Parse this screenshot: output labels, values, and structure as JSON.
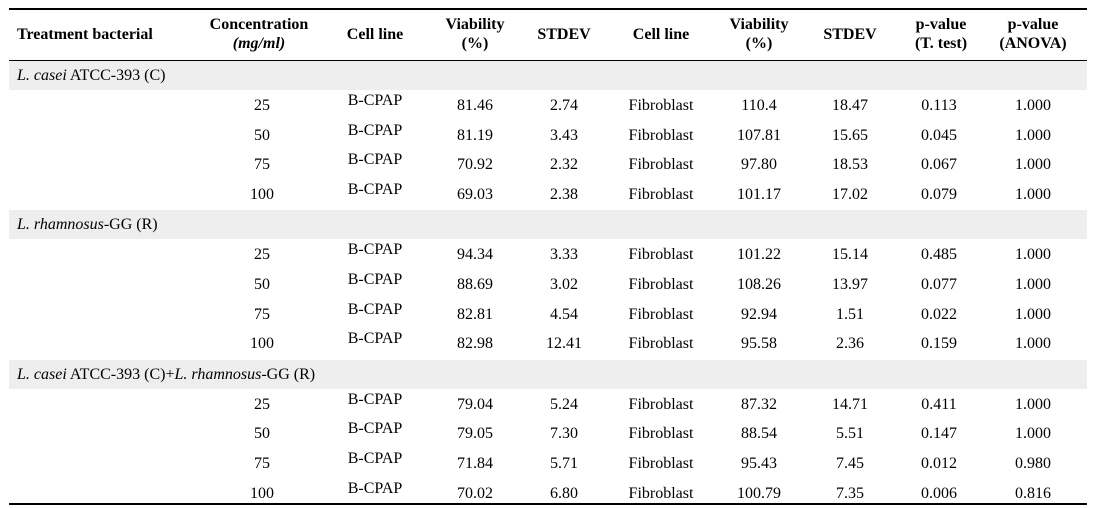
{
  "headers": {
    "treatment": "Treatment bacterial",
    "concentration_line1": "Concentration",
    "concentration_line2": "(mg/ml)",
    "cell_line_1": "Cell line",
    "viability_1_line1": "Viability",
    "viability_1_line2": "(%)",
    "stdev_1": "STDEV",
    "cell_line_2": "Cell line",
    "viability_2_line1": "Viability",
    "viability_2_line2": "(%)",
    "stdev_2": "STDEV",
    "pt_line1": "p-value",
    "pt_line2": "(T. test)",
    "pa_line1": "p-value",
    "pa_line2": "(ANOVA)"
  },
  "groups": [
    {
      "label_parts": [
        [
          "L. casei",
          true
        ],
        [
          " ATCC-393 (C)",
          false
        ]
      ],
      "rows": [
        [
          "25",
          "B-CPAP",
          "81.46",
          "2.74",
          "Fibroblast",
          "110.4",
          "18.47",
          "0.113",
          "1.000"
        ],
        [
          "50",
          "B-CPAP",
          "81.19",
          "3.43",
          "Fibroblast",
          "107.81",
          "15.65",
          "0.045",
          "1.000"
        ],
        [
          "75",
          "B-CPAP",
          "70.92",
          "2.32",
          "Fibroblast",
          "97.80",
          "18.53",
          "0.067",
          "1.000"
        ],
        [
          "100",
          "B-CPAP",
          "69.03",
          "2.38",
          "Fibroblast",
          "101.17",
          "17.02",
          "0.079",
          "1.000"
        ]
      ]
    },
    {
      "label_parts": [
        [
          "L. rhamnosus",
          true
        ],
        [
          "-GG (R)",
          false
        ]
      ],
      "rows": [
        [
          "25",
          "B-CPAP",
          "94.34",
          "3.33",
          "Fibroblast",
          "101.22",
          "15.14",
          "0.485",
          "1.000"
        ],
        [
          "50",
          "B-CPAP",
          "88.69",
          "3.02",
          "Fibroblast",
          "108.26",
          "13.97",
          "0.077",
          "1.000"
        ],
        [
          "75",
          "B-CPAP",
          "82.81",
          "4.54",
          "Fibroblast",
          "92.94",
          "1.51",
          "0.022",
          "1.000"
        ],
        [
          "100",
          "B-CPAP",
          "82.98",
          "12.41",
          "Fibroblast",
          "95.58",
          "2.36",
          "0.159",
          "1.000"
        ]
      ]
    },
    {
      "label_parts": [
        [
          "L. casei",
          true
        ],
        [
          " ATCC-393 (C)+",
          false
        ],
        [
          "L. rhamnosus",
          true
        ],
        [
          "-GG (R)",
          false
        ]
      ],
      "rows": [
        [
          "25",
          "B-CPAP",
          "79.04",
          "5.24",
          "Fibroblast",
          "87.32",
          "14.71",
          "0.411",
          "1.000"
        ],
        [
          "50",
          "B-CPAP",
          "79.05",
          "7.30",
          "Fibroblast",
          "88.54",
          "5.51",
          "0.147",
          "1.000"
        ],
        [
          "75",
          "B-CPAP",
          "71.84",
          "5.71",
          "Fibroblast",
          "95.43",
          "7.45",
          "0.012",
          "0.980"
        ],
        [
          "100",
          "B-CPAP",
          "70.02",
          "6.80",
          "Fibroblast",
          "100.79",
          "7.35",
          "0.006",
          "0.816"
        ]
      ]
    }
  ]
}
